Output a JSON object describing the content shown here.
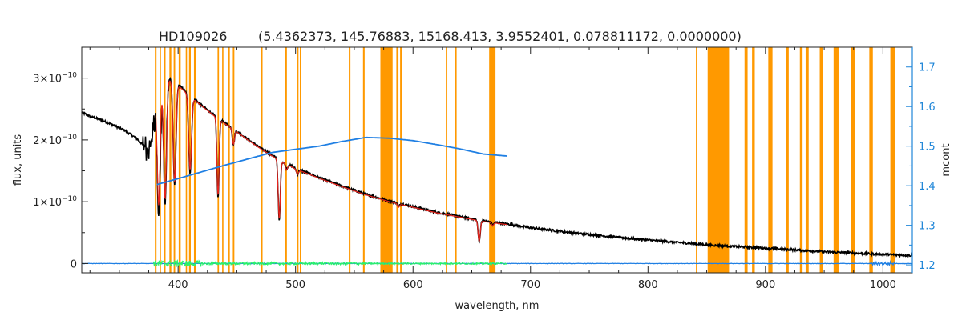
{
  "chart_data": {
    "type": "line",
    "title": "HD109026",
    "params_text": "(5.4362373, 145.76883, 15168.413, 3.9552401, 0.078811172, 0.0000000)",
    "xlabel": "wavelength, nm",
    "ylabel": "flux, units",
    "y2label": "mcont",
    "xlim": [
      318,
      1025
    ],
    "ylim": [
      -1.5e-11,
      3.5e-10
    ],
    "y2lim": [
      1.18,
      1.75
    ],
    "x_ticks": [
      400,
      500,
      600,
      700,
      800,
      900,
      1000
    ],
    "y_ticks": [
      {
        "value": 0,
        "mantissa": "0",
        "exponent": ""
      },
      {
        "value": 1e-10,
        "mantissa": "1×10",
        "exponent": "−10"
      },
      {
        "value": 2e-10,
        "mantissa": "2×10",
        "exponent": "−10"
      },
      {
        "value": 3e-10,
        "mantissa": "3×10",
        "exponent": "−10"
      }
    ],
    "y2_ticks": [
      1.2,
      1.3,
      1.4,
      1.5,
      1.6,
      1.7
    ],
    "colors": {
      "observed": "#000000",
      "model": "#e8231c",
      "residual": "#2bf26c",
      "mcont": "#1f7fe3",
      "masked": "#ff9900",
      "right_axis": "#1f86d8",
      "axes": "#222222"
    },
    "masked_bands": [
      [
        380.2,
        381.6
      ],
      [
        384.2,
        385.4
      ],
      [
        387.9,
        389.3
      ],
      [
        392.6,
        394.2
      ],
      [
        396.2,
        397.5
      ],
      [
        400.5,
        402.2
      ],
      [
        406.5,
        407.6
      ],
      [
        409.3,
        410.8
      ],
      [
        413.5,
        415.0
      ],
      [
        433.6,
        434.8
      ],
      [
        437.5,
        438.6
      ],
      [
        442.9,
        444.0
      ],
      [
        446.6,
        447.9
      ],
      [
        470.6,
        471.9
      ],
      [
        491.3,
        492.6
      ],
      [
        501.2,
        502.5
      ],
      [
        503.6,
        504.9
      ],
      [
        545.3,
        546.7
      ],
      [
        557.4,
        558.8
      ],
      [
        572.2,
        582.6
      ],
      [
        585.8,
        587.6
      ],
      [
        589.0,
        590.6
      ],
      [
        627.9,
        629.2
      ],
      [
        635.8,
        637.1
      ],
      [
        664.8,
        670.2
      ],
      [
        840.8,
        842.1
      ],
      [
        850.8,
        869.0
      ],
      [
        882.2,
        884.8
      ],
      [
        888.6,
        890.9
      ],
      [
        902.4,
        906.0
      ],
      [
        917.2,
        919.8
      ],
      [
        929.3,
        931.6
      ],
      [
        934.2,
        936.8
      ],
      [
        946.2,
        949.2
      ],
      [
        958.0,
        962.2
      ],
      [
        972.7,
        976.2
      ],
      [
        988.4,
        991.4
      ],
      [
        1006.3,
        1010.4
      ]
    ],
    "series": [
      {
        "key": "observed",
        "x": [
          318,
          325,
          335,
          345,
          355,
          365,
          370,
          375,
          378,
          381,
          384,
          388,
          392,
          396,
          400,
          410,
          420,
          430,
          440,
          450,
          460,
          470,
          480,
          490,
          500,
          520,
          540,
          560,
          580,
          600,
          620,
          640,
          660,
          680,
          700,
          730,
          760,
          800,
          840,
          860,
          880,
          900,
          925,
          950,
          975,
          1000,
          1025
        ],
        "y": [
          2.45e-10,
          2.38e-10,
          2.32e-10,
          2.24e-10,
          2.15e-10,
          2.02e-10,
          1.92e-10,
          1.85e-10,
          2.05e-10,
          2.38e-10,
          2.72e-10,
          2.96e-10,
          3e-10,
          2.98e-10,
          2.9e-10,
          2.72e-10,
          2.56e-10,
          2.41e-10,
          2.27e-10,
          2.14e-10,
          2e-10,
          1.87e-10,
          1.75e-10,
          1.64e-10,
          1.54e-10,
          1.39e-10,
          1.25e-10,
          1.12e-10,
          1.01e-10,
          9.2e-11,
          8.3e-11,
          7.6e-11,
          6.9e-11,
          6.4e-11,
          5.8e-11,
          5.1e-11,
          4.5e-11,
          3.8e-11,
          3.2e-11,
          2.9e-11,
          2.7e-11,
          2.5e-11,
          2.2e-11,
          1.9e-11,
          1.7e-11,
          1.5e-11,
          1.3e-11
        ]
      },
      {
        "key": "model",
        "x": [
          381,
          384,
          388,
          392,
          396,
          400,
          410,
          420,
          430,
          440,
          450,
          460,
          470,
          480,
          490,
          500,
          520,
          540,
          560,
          580,
          600,
          620,
          640,
          660,
          680
        ],
        "y": [
          2.6e-10,
          2.78e-10,
          2.93e-10,
          2.97e-10,
          2.95e-10,
          2.88e-10,
          2.71e-10,
          2.55e-10,
          2.4e-10,
          2.26e-10,
          2.13e-10,
          1.99e-10,
          1.86e-10,
          1.74e-10,
          1.63e-10,
          1.53e-10,
          1.38e-10,
          1.24e-10,
          1.11e-10,
          1e-10,
          9.1e-11,
          8.2e-11,
          7.5e-11,
          6.8e-11,
          6.3e-11
        ]
      },
      {
        "key": "mcont",
        "axis": "right",
        "x": [
          382,
          400,
          420,
          440,
          460,
          480,
          500,
          520,
          540,
          560,
          580,
          600,
          620,
          640,
          660,
          680
        ],
        "y": [
          1.403,
          1.418,
          1.435,
          1.452,
          1.468,
          1.484,
          1.492,
          1.5,
          1.512,
          1.522,
          1.52,
          1.514,
          1.504,
          1.493,
          1.48,
          1.475
        ]
      }
    ],
    "absorption_lines": [
      {
        "x": 383.5,
        "depth": 1.9e-10
      },
      {
        "x": 388.9,
        "depth": 2e-10
      },
      {
        "x": 397.0,
        "depth": 1.7e-10
      },
      {
        "x": 410.2,
        "depth": 1.25e-10
      },
      {
        "x": 434.0,
        "depth": 1.3e-10
      },
      {
        "x": 447.1,
        "depth": 2.5e-11
      },
      {
        "x": 486.1,
        "depth": 1e-10
      },
      {
        "x": 492.2,
        "depth": 1e-11
      },
      {
        "x": 501.6,
        "depth": 8e-12
      },
      {
        "x": 587.6,
        "depth": 6e-12
      },
      {
        "x": 656.3,
        "depth": 3.5e-11
      },
      {
        "x": 667.8,
        "depth": 5e-12
      }
    ]
  }
}
